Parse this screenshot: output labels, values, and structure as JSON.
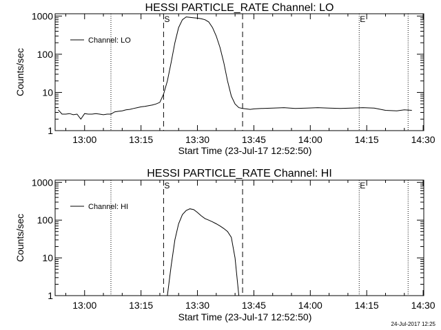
{
  "chart_data": [
    {
      "type": "line",
      "title": "HESSI PARTICLE_RATE Channel: LO",
      "xlabel": "Start Time (23-Jul-17 12:52:50)",
      "ylabel": "Counts/sec",
      "yscale": "log",
      "xlim": [
        "12:53",
        "14:31"
      ],
      "ylim": [
        1,
        1000
      ],
      "x_ticks": [
        "13:00",
        "13:15",
        "13:30",
        "13:45",
        "14:00",
        "14:15",
        "14:30"
      ],
      "y_ticks": [
        "1",
        "10",
        "100",
        "1000"
      ],
      "legend": {
        "label": "Channel: LO",
        "placement": "top-left"
      },
      "markers": {
        "dotted": [
          "13:07",
          "14:13",
          "14:26"
        ],
        "dashed": [
          {
            "time": "13:21",
            "label": "S"
          },
          {
            "time": "13:42",
            "label": ""
          }
        ],
        "dotted_labels": [
          {
            "time": "14:13",
            "label": "E"
          }
        ]
      },
      "series": [
        {
          "x": [
            "12:53",
            "12:54",
            "12:55",
            "12:56",
            "12:57",
            "12:58",
            "12:59",
            "13:00",
            "13:01",
            "13:02",
            "13:03",
            "13:04",
            "13:05",
            "13:06",
            "13:07",
            "13:08",
            "13:09",
            "13:10",
            "13:11",
            "13:12",
            "13:13",
            "13:14",
            "13:15",
            "13:16",
            "13:17",
            "13:18",
            "13:19",
            "13:20",
            "13:21",
            "13:22",
            "13:23",
            "13:24",
            "13:25",
            "13:26",
            "13:27",
            "13:28",
            "13:29",
            "13:30",
            "13:31",
            "13:32",
            "13:33",
            "13:34",
            "13:35",
            "13:36",
            "13:37",
            "13:38",
            "13:39",
            "13:40",
            "13:41",
            "13:42",
            "13:43",
            "13:44",
            "13:45",
            "13:47",
            "13:50",
            "13:53",
            "13:56",
            "13:59",
            "14:02",
            "14:05",
            "14:08",
            "14:11",
            "14:14",
            "14:17",
            "14:20",
            "14:23",
            "14:25",
            "14:27"
          ],
          "values": [
            3.5,
            2.7,
            2.7,
            2.8,
            2.6,
            2.7,
            2.0,
            2.8,
            2.7,
            2.7,
            2.8,
            2.7,
            2.6,
            2.7,
            2.7,
            3.1,
            3.2,
            3.3,
            3.5,
            3.6,
            3.8,
            4.0,
            4.2,
            4.3,
            4.5,
            4.7,
            5.0,
            5.5,
            9,
            20,
            60,
            200,
            500,
            800,
            950,
            920,
            900,
            880,
            850,
            800,
            700,
            500,
            300,
            150,
            60,
            20,
            8,
            5,
            4,
            3.8,
            3.7,
            3.6,
            3.7,
            3.8,
            3.9,
            4.0,
            3.8,
            3.9,
            4.0,
            3.9,
            3.8,
            3.9,
            4.0,
            3.9,
            3.4,
            3.3,
            3.5,
            3.4
          ]
        }
      ]
    },
    {
      "type": "line",
      "title": "HESSI PARTICLE_RATE Channel: HI",
      "xlabel": "Start Time (23-Jul-17 12:52:50)",
      "ylabel": "Counts/sec",
      "yscale": "log",
      "xlim": [
        "12:53",
        "14:31"
      ],
      "ylim": [
        1,
        1000
      ],
      "x_ticks": [
        "13:00",
        "13:15",
        "13:30",
        "13:45",
        "14:00",
        "14:15",
        "14:30"
      ],
      "y_ticks": [
        "1",
        "10",
        "100",
        "1000"
      ],
      "legend": {
        "label": "Channel: HI",
        "placement": "top-left"
      },
      "markers": {
        "dotted": [
          "13:07",
          "14:13",
          "14:26"
        ],
        "dashed": [
          {
            "time": "13:21",
            "label": "S"
          },
          {
            "time": "13:42",
            "label": ""
          }
        ],
        "dotted_labels": [
          {
            "time": "14:13",
            "label": "E"
          }
        ]
      },
      "series": [
        {
          "x": [
            "13:22",
            "13:23",
            "13:24",
            "13:25",
            "13:26",
            "13:27",
            "13:28",
            "13:29",
            "13:30",
            "13:31",
            "13:32",
            "13:33",
            "13:34",
            "13:35",
            "13:36",
            "13:37",
            "13:38",
            "13:39",
            "13:40",
            "13:41"
          ],
          "values": [
            1,
            6,
            30,
            80,
            140,
            180,
            200,
            190,
            160,
            130,
            110,
            100,
            90,
            80,
            70,
            60,
            50,
            35,
            10,
            1
          ]
        }
      ]
    }
  ],
  "footer": {
    "timestamp": "24-Jul-2017 12:25"
  }
}
